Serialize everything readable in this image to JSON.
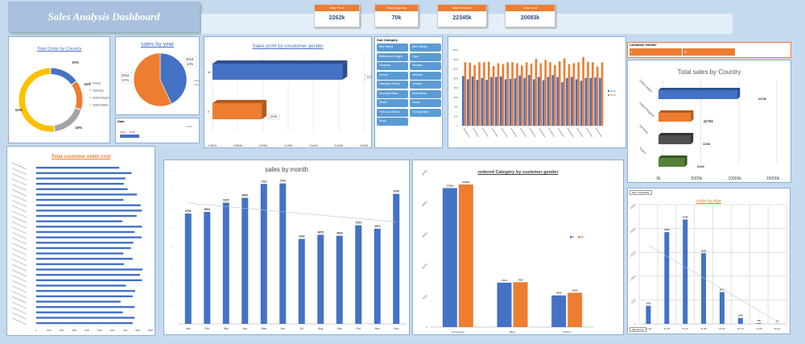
{
  "header": {
    "title": "Sales Analysis Dashboard"
  },
  "kpis": [
    {
      "label": "Total Profit",
      "value": "2262k"
    },
    {
      "label": "Total Quantity",
      "value": "70k"
    },
    {
      "label": "Total Revenue",
      "value": "22345k"
    },
    {
      "label": "Total Cost",
      "value": "20083k"
    }
  ],
  "colors": {
    "blue": "#4472c4",
    "orange": "#ed7d31",
    "gray": "#a5a5a5",
    "yellow": "#ffc000",
    "green": "#548235",
    "dark": "#505050",
    "accent": "#ed7d31"
  },
  "donut": {
    "title": "Total Order by Country",
    "slices": [
      {
        "name": "France",
        "pct": 15,
        "label": "15%"
      },
      {
        "name": "Germany",
        "pct": 15,
        "label": "15%"
      },
      {
        "name": "United Kingdom",
        "pct": 18,
        "label": "18%"
      },
      {
        "name": "United States",
        "pct": 52,
        "label": "52%"
      }
    ]
  },
  "pie": {
    "title": "sales by year",
    "slices": [
      {
        "name": "2015",
        "pct": 43,
        "label": "2015 43%"
      },
      {
        "name": "2016",
        "pct": 57,
        "label": "2016 57%"
      }
    ]
  },
  "date_slicer": {
    "title": "Date",
    "level": "Years",
    "items": [
      "2015",
      "2016"
    ]
  },
  "gender_profit": {
    "title": "Sales profit by cosutomer gender",
    "categories": [
      "M",
      "F"
    ],
    "values": [
      1163,
      1099
    ],
    "labels": [
      "1163k",
      "1099k"
    ],
    "ticks": [
      "1060k",
      "1080k",
      "1100k",
      "1120k",
      "1140k",
      "1160k",
      "1180k"
    ],
    "xlim": [
      1060,
      1180
    ]
  },
  "subcategory_slicer": {
    "title": "Sub Category",
    "items": [
      "Bike Racks",
      "Bike Stands",
      "Bottles and Cages",
      "Caps",
      "Cleaners",
      "Fenders",
      "Gloves",
      "Helmets",
      "Hydration Packs",
      "Jerseys",
      "Mountain Bikes",
      "Road Bikes",
      "Shorts",
      "Socks",
      "Tires and Tubes",
      "Touring Bikes",
      "Vests"
    ]
  },
  "gender_slicer": {
    "title": "Customer Gender",
    "items": [
      "F",
      "M"
    ]
  },
  "chart_data": [
    {
      "type": "bar",
      "id": "year-columns",
      "series": [
        {
          "name": "2015",
          "values": [
            1050,
            980,
            1040,
            970,
            1010,
            970,
            1030,
            1030,
            1040,
            980,
            990,
            1000,
            1060,
            1010,
            1070,
            980,
            1030,
            960,
            1030,
            1070,
            1030,
            920,
            1010,
            1030,
            980,
            950,
            1010,
            1010,
            1020,
            1010
          ]
        },
        {
          "name": "2016",
          "values": [
            1340,
            1330,
            1280,
            1340,
            1340,
            1350,
            1260,
            1320,
            1300,
            1340,
            1340,
            1320,
            1270,
            1340,
            1310,
            1410,
            1320,
            1390,
            1340,
            1280,
            1360,
            1420,
            1300,
            1320,
            1340,
            1450,
            1350,
            1340,
            1250,
            1340
          ]
        }
      ],
      "yticks": [
        "0",
        "200",
        "400",
        "600",
        "800",
        "1000",
        "1200",
        "1400",
        "1600"
      ],
      "ylim": [
        0,
        1600
      ]
    },
    {
      "type": "bar",
      "id": "country-sales",
      "title": "Total sales by Country",
      "categories": [
        "United States",
        "United Kingdom",
        "Germany",
        "France"
      ],
      "values": [
        10378,
        4276,
        4245,
        3446
      ],
      "labels": [
        "10378k",
        "4276k",
        "4245k",
        "3446k"
      ],
      "xticks": [
        "0k",
        "5000k",
        "10000k",
        "15000k"
      ],
      "xlim": [
        0,
        15000
      ]
    },
    {
      "type": "bar",
      "id": "customer-order-cost",
      "title": "Total customer  order cost",
      "values": [
        6540,
        7500,
        7020,
        6900,
        7200,
        7930,
        6860,
        8230,
        8330,
        7910,
        6780,
        8330,
        7730,
        8290,
        7650,
        7460,
        6860,
        7590,
        6900,
        8370,
        8170,
        8330,
        7060,
        7790,
        7590,
        6640,
        7750,
        6820,
        7750,
        7590
      ],
      "xticks": [
        "0",
        "1000",
        "2000",
        "3000",
        "4000",
        "5000",
        "6000",
        "7000",
        "8000",
        "9000"
      ],
      "xlim": [
        0,
        9000
      ]
    },
    {
      "type": "bar",
      "id": "sales-by-month",
      "title": "sales by month",
      "categories": [
        "Jan",
        "Feb",
        "Mar",
        "Apr",
        "May",
        "Jun",
        "Jul",
        "Aug",
        "Sep",
        "Oct",
        "Nov",
        "Dec"
      ],
      "values": [
        5766,
        5854,
        6335,
        6585,
        7313,
        7342,
        4442,
        4655,
        4606,
        5153,
        4975,
        6796
      ],
      "ylim": [
        0,
        8000
      ],
      "trendline": true
    },
    {
      "type": "bar",
      "id": "category-gender",
      "title": "ordered Category by customer gender",
      "categories": [
        "Accessories",
        "Bikes",
        "Clothing"
      ],
      "series": [
        {
          "name": "F",
          "values": [
            22239,
            7104,
            5066
          ]
        },
        {
          "name": "M",
          "values": [
            22808,
            7183,
            5493
          ]
        }
      ],
      "yticks": [
        "0",
        "5000",
        "10000",
        "15000",
        "20000",
        "25000"
      ],
      "ylim": [
        0,
        25000
      ],
      "legend": "right"
    },
    {
      "type": "bar",
      "id": "order-by-age",
      "title": "order by Age",
      "categories": [
        "11-20",
        "21-30",
        "31-40",
        "41-50",
        "51-60",
        "61-70",
        "71-80",
        "81-90"
      ],
      "values": [
        3790,
        19230,
        21890,
        14820,
        6670,
        1240,
        150,
        50
      ],
      "yticks": [
        "0",
        "5000",
        "10000",
        "15000",
        "20000",
        "25000"
      ],
      "ylim": [
        0,
        25000
      ],
      "trendline": true,
      "field_button": "Sum of Quantity",
      "axis_button": "Age Group"
    }
  ]
}
